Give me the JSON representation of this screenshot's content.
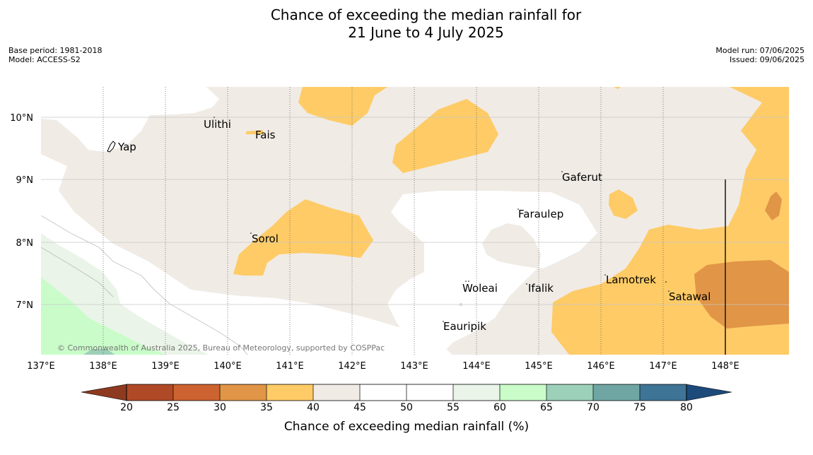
{
  "title": {
    "line1": "Chance of exceeding the median rainfall for",
    "line2": "21 June to 4 July 2025"
  },
  "meta_left": {
    "base_period": "Base period: 1981-2018",
    "model": "Model: ACCESS-S2"
  },
  "meta_right": {
    "model_run": "Model run: 07/06/2025",
    "issued": "Issued: 09/06/2025"
  },
  "map": {
    "lon_labels": [
      "137°E",
      "138°E",
      "139°E",
      "140°E",
      "141°E",
      "142°E",
      "143°E",
      "144°E",
      "145°E",
      "146°E",
      "147°E",
      "148°E"
    ],
    "lat_labels": [
      "10°N",
      "9°N",
      "8°N",
      "7°N"
    ],
    "places": [
      "Ulithi",
      "Fais",
      "Yap",
      "Gaferut",
      "Faraulep",
      "Sorol",
      "Woleai",
      "Ifalik",
      "Lamotrek",
      "Satawal",
      "Eauripik"
    ],
    "copyright": "© Commonwealth of Australia 2025, Bureau of Meteorology, supported by COSPPac",
    "colors": {
      "c25_30": "#cd6330",
      "c30_35": "#e19546",
      "c35_40": "#fecb66",
      "c40_45": "#f0ebe5",
      "c45_55": "#ffffff",
      "c55_60": "#eaf4e8",
      "c60_65": "#c9fcc9",
      "c65_70": "#9cd0b8",
      "c70_75": "#6fa6a4"
    }
  },
  "colorbar": {
    "ticks": [
      "20",
      "25",
      "30",
      "35",
      "40",
      "45",
      "50",
      "55",
      "60",
      "65",
      "70",
      "75",
      "80"
    ],
    "colors": [
      "#b04a26",
      "#cd6330",
      "#e19546",
      "#fecb66",
      "#f0ebe5",
      "#ffffff",
      "#ffffff",
      "#eaf4e8",
      "#c9fcc9",
      "#9cd0b8",
      "#6fa6a4",
      "#3e7496"
    ],
    "under_color": "#8e3a20",
    "over_color": "#1c4b7b",
    "label": "Chance of exceeding median rainfall (%)"
  }
}
